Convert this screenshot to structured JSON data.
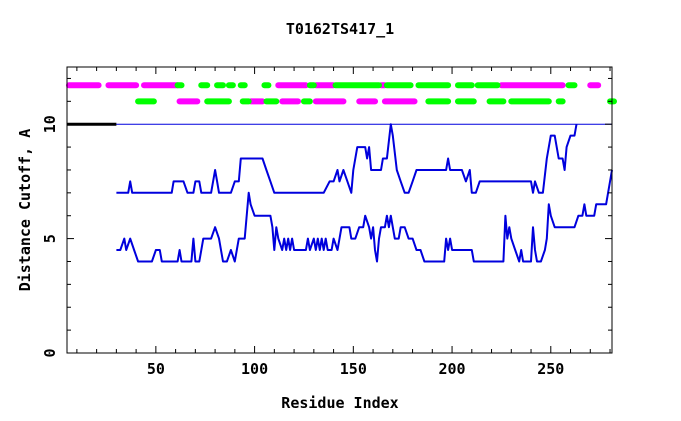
{
  "chart_data": {
    "type": "line",
    "title": "T0162TS417_1",
    "xlabel": "Residue Index",
    "ylabel": "Distance Cutoff, A",
    "xlim": [
      5,
      281
    ],
    "ylim": [
      0,
      12.5
    ],
    "x_ticks": [
      50,
      100,
      150,
      200,
      250
    ],
    "y_ticks": [
      0,
      5,
      10
    ],
    "grid": false,
    "legend": "none",
    "colors": {
      "line": "#0000dd",
      "magenta": "#ff00ff",
      "green": "#00ff00",
      "black": "#000000"
    },
    "reference_line": {
      "y": 10,
      "x": [
        5,
        281
      ]
    },
    "black_segment": {
      "y": 10,
      "x": [
        5,
        30
      ]
    },
    "series": [
      {
        "values": [
          [
            30,
            7.0
          ],
          [
            36,
            7.0
          ],
          [
            37,
            7.5
          ],
          [
            38,
            7.0
          ],
          [
            58,
            7.0
          ],
          [
            59,
            7.5
          ],
          [
            64,
            7.5
          ],
          [
            66,
            7.0
          ],
          [
            69,
            7.0
          ],
          [
            70,
            7.5
          ],
          [
            72,
            7.5
          ],
          [
            73,
            7.0
          ],
          [
            78,
            7.0
          ],
          [
            79,
            7.5
          ],
          [
            80,
            8.0
          ],
          [
            81,
            7.5
          ],
          [
            82,
            7.0
          ],
          [
            88,
            7.0
          ],
          [
            90,
            7.5
          ],
          [
            92,
            7.5
          ],
          [
            93,
            8.5
          ],
          [
            104,
            8.5
          ],
          [
            106,
            8.0
          ],
          [
            108,
            7.5
          ],
          [
            110,
            7.0
          ],
          [
            135,
            7.0
          ],
          [
            138,
            7.5
          ],
          [
            140,
            7.5
          ],
          [
            142,
            8.0
          ],
          [
            143,
            7.5
          ],
          [
            145,
            8.0
          ],
          [
            147,
            7.5
          ],
          [
            149,
            7.0
          ],
          [
            150,
            8.0
          ],
          [
            152,
            9.0
          ],
          [
            156,
            9.0
          ],
          [
            157,
            8.5
          ],
          [
            158,
            9.0
          ],
          [
            159,
            8.0
          ],
          [
            164,
            8.0
          ],
          [
            165,
            8.5
          ],
          [
            167,
            8.5
          ],
          [
            169,
            10.0
          ],
          [
            170,
            9.5
          ],
          [
            172,
            8.0
          ],
          [
            174,
            7.5
          ],
          [
            176,
            7.0
          ],
          [
            178,
            7.0
          ],
          [
            180,
            7.5
          ],
          [
            182,
            8.0
          ],
          [
            197,
            8.0
          ],
          [
            198,
            8.5
          ],
          [
            199,
            8.0
          ],
          [
            205,
            8.0
          ],
          [
            207,
            7.5
          ],
          [
            209,
            8.0
          ],
          [
            210,
            7.0
          ],
          [
            212,
            7.0
          ],
          [
            214,
            7.5
          ],
          [
            240,
            7.5
          ],
          [
            241,
            7.0
          ],
          [
            242,
            7.5
          ],
          [
            244,
            7.0
          ],
          [
            246,
            7.0
          ],
          [
            248,
            8.5
          ],
          [
            250,
            9.5
          ],
          [
            252,
            9.5
          ],
          [
            254,
            8.5
          ],
          [
            256,
            8.5
          ],
          [
            257,
            8.0
          ],
          [
            258,
            9.0
          ],
          [
            260,
            9.5
          ],
          [
            262,
            9.5
          ],
          [
            263,
            10.0
          ]
        ]
      },
      {
        "values": [
          [
            30,
            4.5
          ],
          [
            32,
            4.5
          ],
          [
            34,
            5.0
          ],
          [
            35,
            4.5
          ],
          [
            37,
            5.0
          ],
          [
            39,
            4.5
          ],
          [
            41,
            4.0
          ],
          [
            48,
            4.0
          ],
          [
            50,
            4.5
          ],
          [
            52,
            4.5
          ],
          [
            53,
            4.0
          ],
          [
            61,
            4.0
          ],
          [
            62,
            4.5
          ],
          [
            63,
            4.0
          ],
          [
            68,
            4.0
          ],
          [
            69,
            5.0
          ],
          [
            70,
            4.0
          ],
          [
            72,
            4.0
          ],
          [
            74,
            5.0
          ],
          [
            78,
            5.0
          ],
          [
            80,
            5.5
          ],
          [
            82,
            5.0
          ],
          [
            84,
            4.0
          ],
          [
            86,
            4.0
          ],
          [
            88,
            4.5
          ],
          [
            90,
            4.0
          ],
          [
            92,
            5.0
          ],
          [
            95,
            5.0
          ],
          [
            96,
            6.0
          ],
          [
            97,
            7.0
          ],
          [
            98,
            6.5
          ],
          [
            100,
            6.0
          ],
          [
            108,
            6.0
          ],
          [
            109,
            5.5
          ],
          [
            110,
            4.5
          ],
          [
            111,
            5.5
          ],
          [
            112,
            5.0
          ],
          [
            114,
            4.5
          ],
          [
            115,
            5.0
          ],
          [
            116,
            4.5
          ],
          [
            117,
            5.0
          ],
          [
            118,
            4.5
          ],
          [
            119,
            5.0
          ],
          [
            120,
            4.5
          ],
          [
            126,
            4.5
          ],
          [
            127,
            5.0
          ],
          [
            128,
            4.5
          ],
          [
            130,
            5.0
          ],
          [
            131,
            4.5
          ],
          [
            132,
            5.0
          ],
          [
            133,
            4.5
          ],
          [
            134,
            5.0
          ],
          [
            135,
            4.5
          ],
          [
            136,
            5.0
          ],
          [
            137,
            4.5
          ],
          [
            139,
            4.5
          ],
          [
            140,
            5.0
          ],
          [
            142,
            4.5
          ],
          [
            144,
            5.5
          ],
          [
            148,
            5.5
          ],
          [
            149,
            5.0
          ],
          [
            151,
            5.0
          ],
          [
            153,
            5.5
          ],
          [
            155,
            5.5
          ],
          [
            156,
            6.0
          ],
          [
            158,
            5.5
          ],
          [
            159,
            5.0
          ],
          [
            160,
            5.5
          ],
          [
            161,
            4.5
          ],
          [
            162,
            4.0
          ],
          [
            163,
            5.0
          ],
          [
            164,
            5.5
          ],
          [
            166,
            5.5
          ],
          [
            167,
            6.0
          ],
          [
            168,
            5.5
          ],
          [
            169,
            6.0
          ],
          [
            170,
            5.5
          ],
          [
            171,
            5.0
          ],
          [
            173,
            5.0
          ],
          [
            174,
            5.5
          ],
          [
            176,
            5.5
          ],
          [
            178,
            5.0
          ],
          [
            180,
            5.0
          ],
          [
            182,
            4.5
          ],
          [
            184,
            4.5
          ],
          [
            186,
            4.0
          ],
          [
            196,
            4.0
          ],
          [
            197,
            5.0
          ],
          [
            198,
            4.5
          ],
          [
            199,
            5.0
          ],
          [
            200,
            4.5
          ],
          [
            210,
            4.5
          ],
          [
            211,
            4.0
          ],
          [
            226,
            4.0
          ],
          [
            227,
            6.0
          ],
          [
            228,
            5.0
          ],
          [
            229,
            5.5
          ],
          [
            230,
            5.0
          ],
          [
            232,
            4.5
          ],
          [
            234,
            4.0
          ],
          [
            235,
            4.5
          ],
          [
            236,
            4.0
          ],
          [
            240,
            4.0
          ],
          [
            241,
            5.5
          ],
          [
            242,
            4.5
          ],
          [
            243,
            4.0
          ],
          [
            245,
            4.0
          ],
          [
            247,
            4.5
          ],
          [
            248,
            5.0
          ],
          [
            249,
            6.5
          ],
          [
            250,
            6.0
          ],
          [
            252,
            5.5
          ],
          [
            262,
            5.5
          ],
          [
            264,
            6.0
          ],
          [
            266,
            6.0
          ],
          [
            267,
            6.5
          ],
          [
            268,
            6.0
          ],
          [
            272,
            6.0
          ],
          [
            273,
            6.5
          ],
          [
            278,
            6.5
          ],
          [
            281,
            8.0
          ]
        ]
      }
    ],
    "bars_row1": {
      "y": 11.7,
      "magenta": [
        [
          6,
          21
        ],
        [
          26,
          40
        ],
        [
          44,
          61
        ],
        [
          112,
          126
        ],
        [
          131,
          140
        ],
        [
          164,
          166
        ],
        [
          225,
          256
        ],
        [
          270,
          274
        ]
      ],
      "green": [
        [
          61,
          63
        ],
        [
          73,
          76
        ],
        [
          81,
          84
        ],
        [
          87,
          89
        ],
        [
          93,
          95
        ],
        [
          105,
          107
        ],
        [
          128,
          130
        ],
        [
          141,
          163
        ],
        [
          167,
          179
        ],
        [
          183,
          198
        ],
        [
          203,
          210
        ],
        [
          213,
          223
        ],
        [
          259,
          262
        ]
      ]
    },
    "bars_row2": {
      "y": 11.0,
      "magenta": [
        [
          62,
          71
        ],
        [
          98,
          104
        ],
        [
          114,
          122
        ],
        [
          131,
          145
        ],
        [
          153,
          161
        ],
        [
          166,
          181
        ]
      ],
      "green": [
        [
          41,
          49
        ],
        [
          76,
          87
        ],
        [
          94,
          97
        ],
        [
          106,
          111
        ],
        [
          125,
          128
        ],
        [
          188,
          198
        ],
        [
          203,
          211
        ],
        [
          219,
          226
        ],
        [
          230,
          249
        ],
        [
          254,
          256
        ],
        [
          280,
          282
        ]
      ]
    }
  }
}
